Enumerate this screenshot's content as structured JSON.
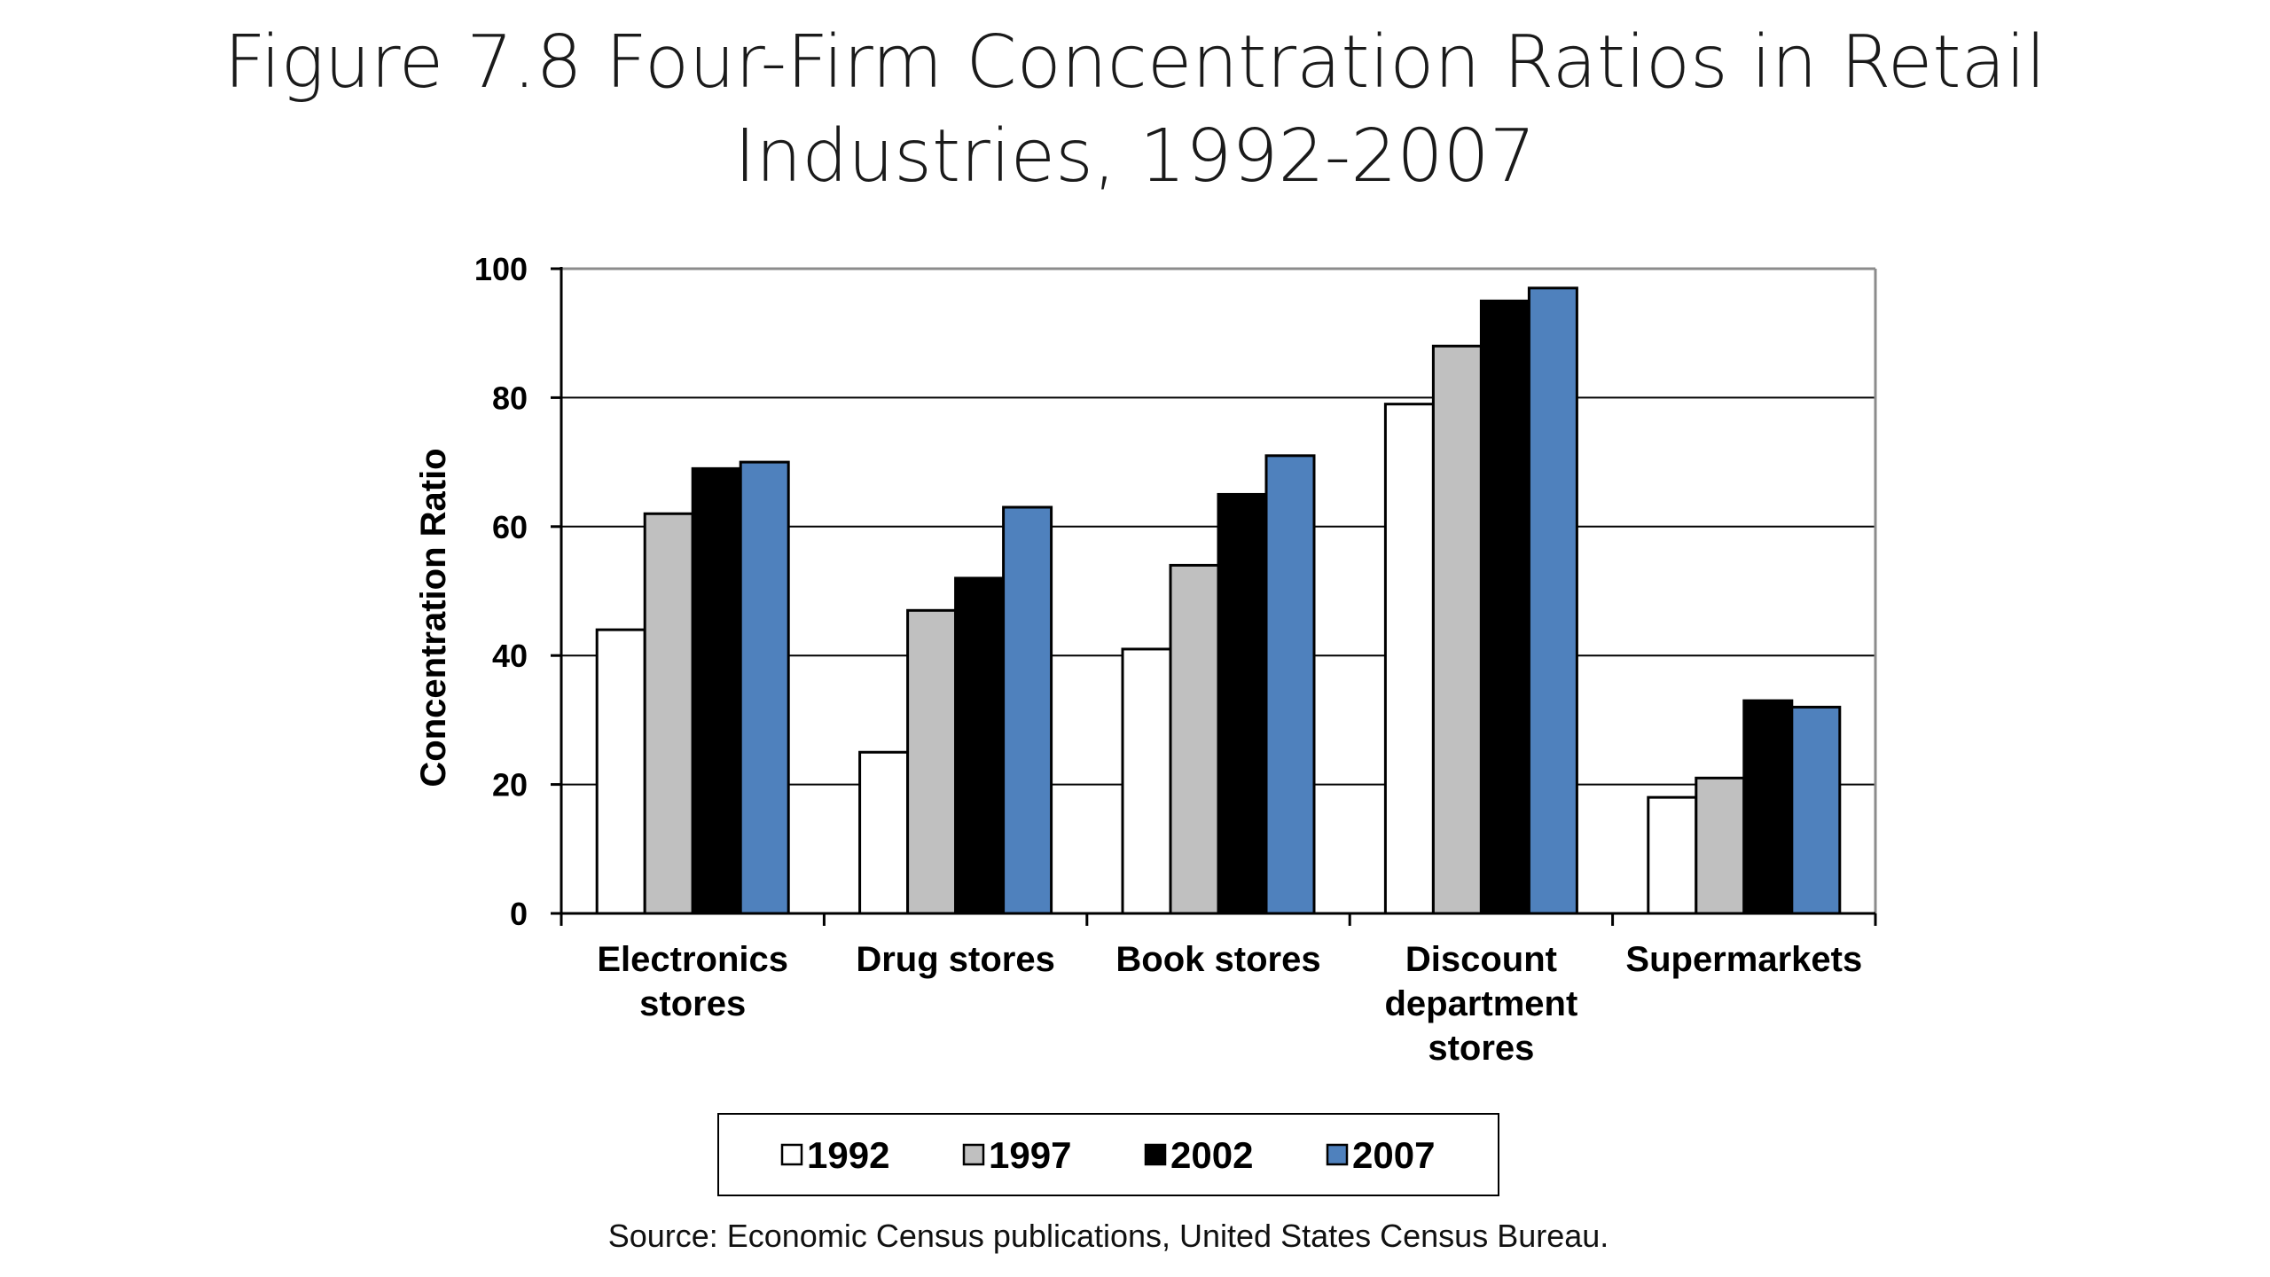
{
  "slide": {
    "title_line1": "Figure 7.8 Four-Firm Concentration Ratios in Retail",
    "title_line2": "Industries, 1992-2007",
    "source": "Source: Economic Census publications, United States Census Bureau."
  },
  "colors": {
    "1992": "#ffffff",
    "1997": "#c0c0c0",
    "2002": "#000000",
    "2007": "#4f81bd"
  },
  "chart_data": {
    "type": "bar",
    "title": "",
    "xlabel": "",
    "ylabel": "Concentration Ratio",
    "ylim": [
      0,
      100
    ],
    "yticks": [
      0,
      20,
      40,
      60,
      80,
      100
    ],
    "grid": true,
    "legend_position": "bottom",
    "categories": [
      [
        "Electronics",
        "stores"
      ],
      [
        "Drug stores"
      ],
      [
        "Book stores"
      ],
      [
        "Discount",
        "department",
        "stores"
      ],
      [
        "Supermarkets"
      ]
    ],
    "series": [
      {
        "name": "1992",
        "values": [
          44,
          25,
          41,
          79,
          18
        ]
      },
      {
        "name": "1997",
        "values": [
          62,
          47,
          54,
          88,
          21
        ]
      },
      {
        "name": "2002",
        "values": [
          69,
          52,
          65,
          95,
          33
        ]
      },
      {
        "name": "2007",
        "values": [
          70,
          63,
          71,
          97,
          32
        ]
      }
    ]
  }
}
